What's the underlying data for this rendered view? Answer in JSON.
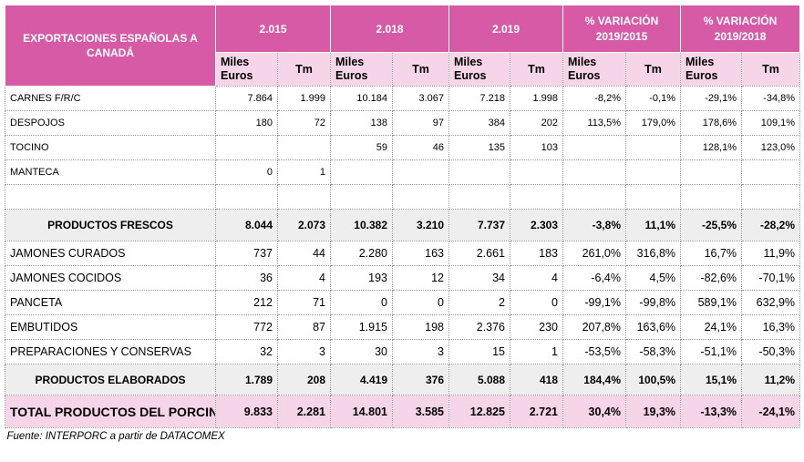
{
  "header": {
    "title": "EXPORTACIONES ESPAÑOLAS A CANADÁ",
    "periods": [
      "2.015",
      "2.018",
      "2.019",
      "% VARIACIÓN 2019/2015",
      "% VARIACIÓN 2019/2018"
    ],
    "sub_value": "Miles Euros",
    "sub_tm": "Tm"
  },
  "rows": [
    {
      "label": "CARNES F/R/C",
      "values": [
        "7.864",
        "1.999",
        "10.184",
        "3.067",
        "7.218",
        "1.998",
        "-8,2%",
        "-0,1%",
        "-29,1%",
        "-34,8%"
      ]
    },
    {
      "label": "DESPOJOS",
      "values": [
        "180",
        "72",
        "138",
        "97",
        "384",
        "202",
        "113,5%",
        "179,0%",
        "178,6%",
        "109,1%"
      ]
    },
    {
      "label": "TOCINO",
      "values": [
        "",
        "",
        "59",
        "46",
        "135",
        "103",
        "",
        "",
        "128,1%",
        "123,0%"
      ]
    },
    {
      "label": "MANTECA",
      "values": [
        "0",
        "1",
        "",
        "",
        "",
        "",
        "",
        "",
        "",
        ""
      ]
    },
    {
      "label": "",
      "values": [
        "",
        "",
        "",
        "",
        "",
        "",
        "",
        "",
        "",
        ""
      ]
    }
  ],
  "fresh_total": {
    "label": "PRODUCTOS FRESCOS",
    "values": [
      "8.044",
      "2.073",
      "10.382",
      "3.210",
      "7.737",
      "2.303",
      "-3,8%",
      "11,1%",
      "-25,5%",
      "-28,2%"
    ]
  },
  "processed_rows": [
    {
      "label": "JAMONES CURADOS",
      "values": [
        "737",
        "44",
        "2.280",
        "163",
        "2.661",
        "183",
        "261,0%",
        "316,8%",
        "16,7%",
        "11,9%"
      ]
    },
    {
      "label": "JAMONES COCIDOS",
      "values": [
        "36",
        "4",
        "193",
        "12",
        "34",
        "4",
        "-6,4%",
        "4,5%",
        "-82,6%",
        "-70,1%"
      ]
    },
    {
      "label": "PANCETA",
      "values": [
        "212",
        "71",
        "0",
        "0",
        "2",
        "0",
        "-99,1%",
        "-99,8%",
        "589,1%",
        "632,9%"
      ]
    },
    {
      "label": "EMBUTIDOS",
      "values": [
        "772",
        "87",
        "1.915",
        "198",
        "2.376",
        "230",
        "207,8%",
        "163,6%",
        "24,1%",
        "16,3%"
      ]
    },
    {
      "label": "PREPARACIONES Y CONSERVAS",
      "values": [
        "32",
        "3",
        "30",
        "3",
        "15",
        "1",
        "-53,5%",
        "-58,3%",
        "-51,1%",
        "-50,3%"
      ]
    }
  ],
  "processed_total": {
    "label": "PRODUCTOS ELABORADOS",
    "values": [
      "1.789",
      "208",
      "4.419",
      "376",
      "5.088",
      "418",
      "184,4%",
      "100,5%",
      "15,1%",
      "11,2%"
    ]
  },
  "grand_total": {
    "label": "TOTAL PRODUCTOS DEL PORCINO",
    "values": [
      "9.833",
      "2.281",
      "14.801",
      "3.585",
      "12.825",
      "2.721",
      "30,4%",
      "19,3%",
      "-13,3%",
      "-24,1%"
    ]
  },
  "source": "Fuente: INTERPORC a partir de DATACOMEX",
  "colors": {
    "header_bg": "#d65aa6",
    "subheader_bg": "#f7d5e9",
    "subtotal_bg": "#eeeeee"
  }
}
